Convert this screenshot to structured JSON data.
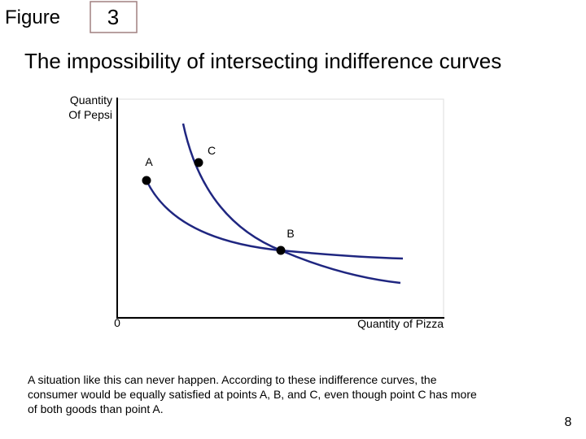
{
  "header": {
    "figure_word": "Figure",
    "figure_number": "3"
  },
  "title": "The impossibility of intersecting indifference curves",
  "diagram": {
    "y_axis_label": [
      "Quantity",
      "Of Pepsi"
    ],
    "origin": "0",
    "x_axis_label": "Quantity of Pizza",
    "points": [
      {
        "label": "A"
      },
      {
        "label": "B"
      },
      {
        "label": "C"
      }
    ]
  },
  "caption": [
    "A situation like this can never happen. According to these indifference curves, the",
    "consumer would be equally satisfied at points A, B, and C, even though point C has more",
    "of both goods than point A."
  ],
  "page_number": "8"
}
